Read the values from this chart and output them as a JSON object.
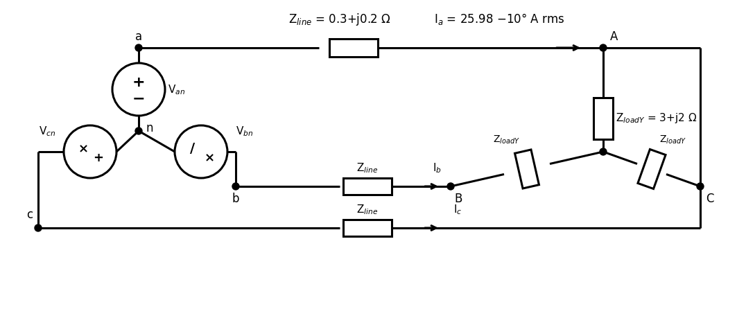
{
  "bg_color": "#ffffff",
  "line_color": "#000000",
  "line_width": 2.2,
  "font_size_label": 12,
  "font_size_small": 11,
  "zline_label": "Z$_{line}$ = 0.3+j0.2 Ω",
  "ia_label": "I$_{a}$ = 25.98 −10° A rms",
  "zloady_label1": "Z$_{loadY}$ = 3+j2 Ω",
  "zloady_label2": "Z$_{loadY}$",
  "zloady_label3": "Z$_{loadY}$",
  "zline_b_label": "Z$_{line}$",
  "zline_c_label": "Z$_{line}$",
  "ib_label": "I$_{b}$",
  "ic_label": "I$_{c}$",
  "van_label": "V$_{an}$",
  "vbn_label": "V$_{bn}$",
  "vcn_label": "V$_{cn}$"
}
